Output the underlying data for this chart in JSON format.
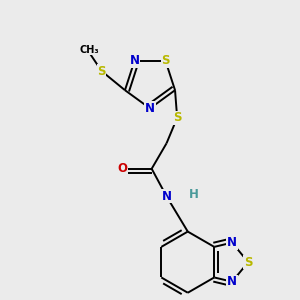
{
  "background_color": "#ebebeb",
  "atom_colors": {
    "C": "#000000",
    "N": "#0000cc",
    "S": "#b8b800",
    "O": "#cc0000",
    "H": "#4a9a9a"
  },
  "bond_color": "#000000",
  "bond_width": 1.4,
  "font_size_atom": 8.5
}
